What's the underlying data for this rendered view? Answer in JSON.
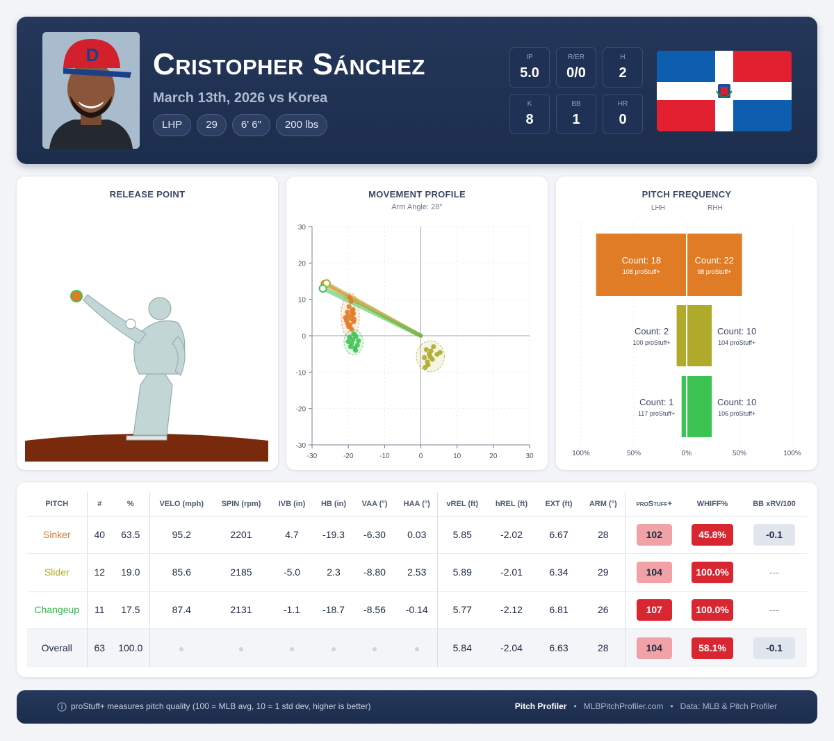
{
  "player": {
    "name": "Cristopher Sánchez",
    "game": "March 13th, 2026 vs Korea",
    "tags": [
      "LHP",
      "29",
      "6' 6\"",
      "200 lbs"
    ]
  },
  "line_score": [
    {
      "label": "IP",
      "value": "5.0"
    },
    {
      "label": "R/ER",
      "value": "0/0"
    },
    {
      "label": "H",
      "value": "2"
    },
    {
      "label": "K",
      "value": "8"
    },
    {
      "label": "BB",
      "value": "1"
    },
    {
      "label": "HR",
      "value": "0"
    }
  ],
  "colors": {
    "sinker": "#e07b26",
    "slider": "#b0aa2b",
    "changeup": "#3cc452",
    "flag_blue": "#0d5eaf",
    "flag_red": "#e2202f",
    "badge_red": "#d92732",
    "badge_light": "#f0a2a7"
  },
  "panels": {
    "release_title": "RELEASE POINT",
    "movement_title": "MOVEMENT PROFILE",
    "movement_subtitle": "Arm Angle: 28°",
    "frequency_title": "PITCH FREQUENCY"
  },
  "chart_data": [
    {
      "type": "scatter",
      "title": "MOVEMENT PROFILE",
      "subtitle": "Arm Angle: 28°",
      "xlim": [
        -30,
        30
      ],
      "ylim": [
        -30,
        30
      ],
      "xticks": [
        -30,
        -20,
        -10,
        0,
        10,
        20,
        30
      ],
      "yticks": [
        30,
        20,
        10,
        0,
        -10,
        -20,
        -30
      ],
      "grid": true,
      "series": [
        {
          "name": "Sinker",
          "color": "#e07b26",
          "points": [
            [
              -19.3,
              4.7
            ],
            [
              -19.0,
              6.8
            ],
            [
              -20.1,
              5.5
            ],
            [
              -18.5,
              3.9
            ],
            [
              -20.5,
              4.2
            ],
            [
              -19.8,
              8.0
            ],
            [
              -18.9,
              5.8
            ],
            [
              -20.3,
              6.5
            ],
            [
              -19.5,
              3.0
            ],
            [
              -18.7,
              7.2
            ],
            [
              -19.9,
              2.5
            ],
            [
              -20.8,
              5.0
            ],
            [
              -18.4,
              4.6
            ],
            [
              -19.2,
              9.5
            ],
            [
              -19.6,
              10.5
            ],
            [
              -19.1,
              1.8
            ],
            [
              -18.6,
              6.1
            ],
            [
              -20.2,
              3.4
            ]
          ]
        },
        {
          "name": "Slider",
          "color": "#b0aa2b",
          "points": [
            [
              2.3,
              -5.0
            ],
            [
              1.5,
              -3.8
            ],
            [
              3.2,
              -6.5
            ],
            [
              2.8,
              -4.2
            ],
            [
              1.0,
              -6.0
            ],
            [
              4.5,
              -5.1
            ],
            [
              2.0,
              -8.0
            ],
            [
              3.5,
              -3.0
            ],
            [
              1.8,
              -7.2
            ],
            [
              2.6,
              -5.8
            ],
            [
              5.3,
              -4.6
            ],
            [
              1.2,
              -8.7
            ]
          ]
        },
        {
          "name": "Changeup",
          "color": "#3cc452",
          "points": [
            [
              -18.7,
              -1.1
            ],
            [
              -19.6,
              -0.4
            ],
            [
              -17.5,
              -2.6
            ],
            [
              -18.2,
              -3.4
            ],
            [
              -20.0,
              -1.6
            ],
            [
              -17.9,
              -0.2
            ],
            [
              -19.1,
              -2.2
            ],
            [
              -18.0,
              -4.0
            ],
            [
              -17.2,
              -1.4
            ],
            [
              -19.4,
              -3.0
            ],
            [
              -18.5,
              0.5
            ]
          ]
        }
      ],
      "arm_angle_lines": [
        {
          "series": "Sinker",
          "from": [
            0,
            0
          ],
          "to": [
            -26.5,
            14.2
          ]
        },
        {
          "series": "Slider",
          "from": [
            0,
            0
          ],
          "to": [
            -26.0,
            14.4
          ]
        },
        {
          "series": "Changeup",
          "from": [
            0,
            0
          ],
          "to": [
            -27.0,
            13.0
          ]
        }
      ]
    },
    {
      "type": "bar",
      "title": "PITCH FREQUENCY",
      "side_labels": [
        "LHH",
        "RHH"
      ],
      "x_tick_labels": [
        "100%",
        "50%",
        "0%",
        "50%",
        "100%"
      ],
      "xlim": [
        -100,
        100
      ],
      "categories": [
        "Sinker",
        "Slider",
        "Changeup"
      ],
      "series": [
        {
          "name": "LHH",
          "counts": [
            18,
            2,
            1
          ],
          "pct": [
            85.7,
            9.5,
            4.8
          ],
          "prostuff": [
            "108 proStuff+",
            "100 proStuff+",
            "117 proStuff+"
          ],
          "labels": [
            "Count: 18",
            "Count: 2",
            "Count: 1"
          ]
        },
        {
          "name": "RHH",
          "counts": [
            22,
            10,
            10
          ],
          "pct": [
            52.4,
            23.8,
            23.8
          ],
          "prostuff": [
            "98 proStuff+",
            "104 proStuff+",
            "106 proStuff+"
          ],
          "labels": [
            "Count: 22",
            "Count: 10",
            "Count: 10"
          ]
        }
      ]
    }
  ],
  "table": {
    "headers": {
      "pitch": "PITCH",
      "n": "#",
      "pct": "%",
      "velo": "VELO (mph)",
      "spin": "SPIN (rpm)",
      "ivb": "IVB (in)",
      "hb": "HB (in)",
      "vaa": "VAA (°)",
      "haa": "HAA (°)",
      "vrel": "vREL (ft)",
      "hrel": "hREL (ft)",
      "ext": "EXT (ft)",
      "arm": "ARM (°)",
      "prostuff": "proStuff+",
      "whiff": "WHIFF%",
      "xrv": "BB xRV/100"
    },
    "rows": [
      {
        "pitch": "Sinker",
        "n": "40",
        "pct": "63.5",
        "velo": "95.2",
        "spin": "2201",
        "ivb": "4.7",
        "hb": "-19.3",
        "vaa": "-6.30",
        "haa": "0.03",
        "vrel": "5.85",
        "hrel": "-2.02",
        "ext": "6.67",
        "arm": "28",
        "prostuff": "102",
        "whiff": "45.8%",
        "xrv": "-0.1"
      },
      {
        "pitch": "Slider",
        "n": "12",
        "pct": "19.0",
        "velo": "85.6",
        "spin": "2185",
        "ivb": "-5.0",
        "hb": "2.3",
        "vaa": "-8.80",
        "haa": "2.53",
        "vrel": "5.89",
        "hrel": "-2.01",
        "ext": "6.34",
        "arm": "29",
        "prostuff": "104",
        "whiff": "100.0%",
        "xrv": "---"
      },
      {
        "pitch": "Changeup",
        "n": "11",
        "pct": "17.5",
        "velo": "87.4",
        "spin": "2131",
        "ivb": "-1.1",
        "hb": "-18.7",
        "vaa": "-8.56",
        "haa": "-0.14",
        "vrel": "5.77",
        "hrel": "-2.12",
        "ext": "6.81",
        "arm": "26",
        "prostuff": "107",
        "whiff": "100.0%",
        "xrv": "---"
      }
    ],
    "overall": {
      "pitch": "Overall",
      "n": "63",
      "pct": "100.0",
      "vrel": "5.84",
      "hrel": "-2.04",
      "ext": "6.63",
      "arm": "28",
      "prostuff": "104",
      "whiff": "58.1%",
      "xrv": "-0.1"
    }
  },
  "footer": {
    "note": "proStuff+ measures pitch quality (100 = MLB avg, 10 = 1 std dev, higher is better)",
    "brand": "Pitch Profiler",
    "site": "MLBPitchProfiler.com",
    "source": "Data: MLB & Pitch Profiler",
    "info_icon": "info-icon",
    "separator": "•"
  }
}
